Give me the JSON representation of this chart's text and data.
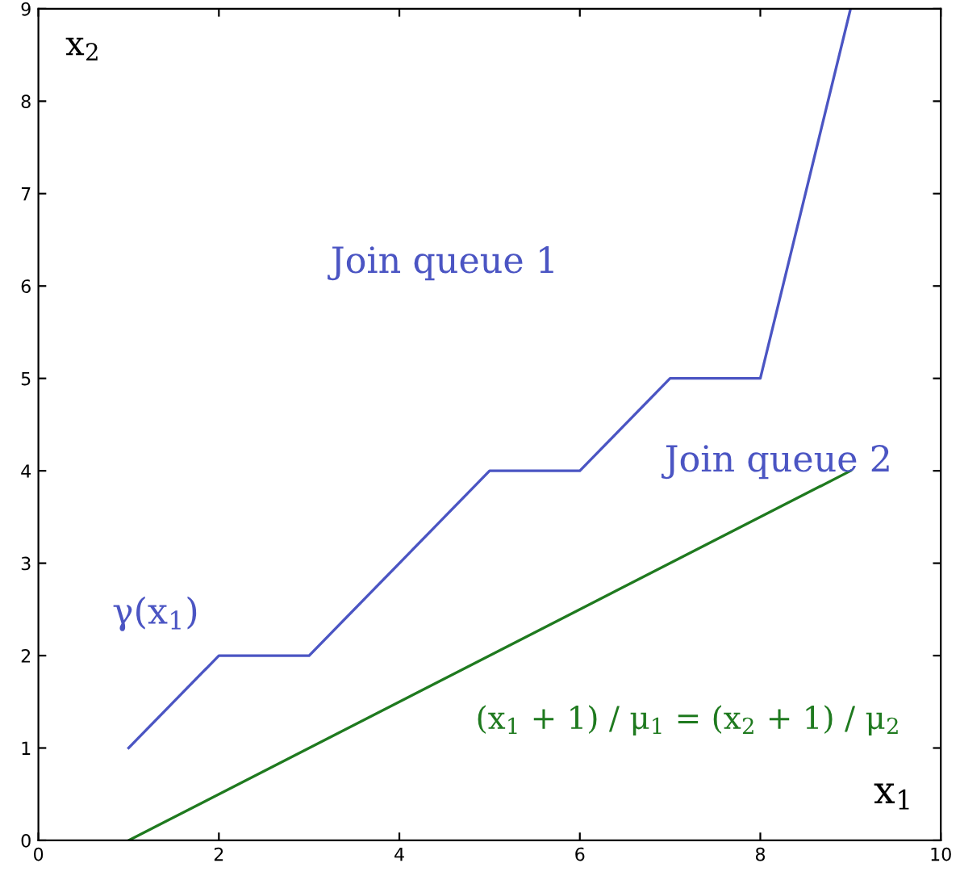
{
  "chart_data": {
    "type": "line",
    "xlabel": "x$_{1}$",
    "ylabel": "x$_{2}$",
    "xlim": [
      0,
      10
    ],
    "ylim": [
      0,
      9
    ],
    "xticks": [
      0,
      2,
      4,
      6,
      8,
      10
    ],
    "yticks": [
      0,
      1,
      2,
      3,
      4,
      5,
      6,
      7,
      8,
      9
    ],
    "grid": false,
    "marker": "none",
    "line_style": "solid",
    "series": [
      {
        "color": "#4b55c3",
        "x": [
          1,
          2,
          3,
          5,
          6,
          7,
          8,
          9
        ],
        "values": [
          1,
          2,
          2,
          4,
          4,
          5,
          5,
          9
        ]
      },
      {
        "color": "#1f7a1f",
        "x": [
          1,
          9
        ],
        "values": [
          0,
          4
        ]
      }
    ],
    "annotations": [
      "Join queue 1",
      "Join queue 2",
      "γ(x$_{1}$)",
      "(x$_{1}$ + 1) / μ$_{1}$ = (x$_{2}$ + 1) / μ$_{2}$"
    ]
  }
}
